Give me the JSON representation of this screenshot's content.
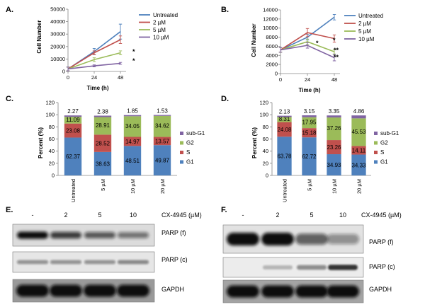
{
  "panels": {
    "A": "A.",
    "B": "B.",
    "C": "C.",
    "D": "D.",
    "E": "E.",
    "F": "F."
  },
  "chart_data": [
    {
      "id": "A",
      "type": "line",
      "title": "",
      "xlabel": "Time (h)",
      "ylabel": "Cell Number",
      "x": [
        0,
        24,
        48
      ],
      "xlim": [
        0,
        48
      ],
      "ylim": [
        0,
        50000
      ],
      "yticks": [
        0,
        10000,
        20000,
        30000,
        40000,
        50000
      ],
      "grid": false,
      "legend": "right",
      "series": [
        {
          "name": "Untreated",
          "color": "#4f81bd",
          "values": [
            2000,
            16000,
            32000
          ],
          "errors": [
            1500,
            2500,
            6000
          ]
        },
        {
          "name": "2 µM",
          "color": "#c0504d",
          "values": [
            2000,
            15000,
            25500
          ],
          "errors": [
            1500,
            1500,
            3000
          ]
        },
        {
          "name": "5 µM",
          "color": "#9bbb59",
          "values": [
            2000,
            9500,
            15000
          ],
          "errors": [
            1500,
            1500,
            1500
          ]
        },
        {
          "name": "10 µM",
          "color": "#8064a2",
          "values": [
            2000,
            4500,
            6500
          ],
          "errors": [
            1500,
            800,
            800
          ]
        }
      ],
      "annotations": [
        "*",
        "*"
      ]
    },
    {
      "id": "B",
      "type": "line",
      "title": "",
      "xlabel": "Time (h)",
      "ylabel": "Cell Number",
      "x": [
        0,
        24,
        48
      ],
      "xlim": [
        0,
        48
      ],
      "ylim": [
        0,
        14000
      ],
      "yticks": [
        0,
        2000,
        4000,
        6000,
        8000,
        10000,
        12000,
        14000
      ],
      "grid": false,
      "legend": "right",
      "series": [
        {
          "name": "Untreated",
          "color": "#4f81bd",
          "values": [
            5200,
            8000,
            12400
          ],
          "errors": [
            500,
            600,
            600
          ]
        },
        {
          "name": "2 µM",
          "color": "#c0504d",
          "values": [
            5200,
            9000,
            7700
          ],
          "errors": [
            500,
            900,
            800
          ]
        },
        {
          "name": "5 µM",
          "color": "#9bbb59",
          "values": [
            5200,
            7000,
            4800
          ],
          "errors": [
            500,
            600,
            500
          ]
        },
        {
          "name": "10 µM",
          "color": "#8064a2",
          "values": [
            5200,
            6200,
            3500
          ],
          "errors": [
            500,
            600,
            700
          ]
        }
      ],
      "annotations": [
        "*",
        "*",
        "**",
        "**"
      ]
    },
    {
      "id": "C",
      "type": "bar",
      "stacked": true,
      "title": "",
      "xlabel": "",
      "ylabel": "Percent (%)",
      "ylim": [
        0,
        120
      ],
      "yticks": [
        0,
        20,
        40,
        60,
        80,
        100,
        120
      ],
      "categories": [
        "Untreated",
        "5 µM",
        "10 µM",
        "20 µM"
      ],
      "legend": "right",
      "series": [
        {
          "name": "G1",
          "color": "#4f81bd",
          "values": [
            62.37,
            38.63,
            48.51,
            49.87
          ],
          "labels": [
            "62.37",
            "38.63",
            "48.51",
            "49.87"
          ]
        },
        {
          "name": "S",
          "color": "#c0504d",
          "values": [
            23.08,
            28.52,
            14.97,
            13.57
          ],
          "labels": [
            "23.08",
            "28.52",
            "14.97",
            "13.57"
          ]
        },
        {
          "name": "G2",
          "color": "#9bbb59",
          "values": [
            11.09,
            28.91,
            34.05,
            34.62
          ],
          "labels": [
            "11.09",
            "28.91",
            "34.05",
            "34.62"
          ]
        },
        {
          "name": "sub-G1",
          "color": "#8064a2",
          "values": [
            2.27,
            2.38,
            1.85,
            1.53
          ],
          "labels": [
            "2.27",
            "2.38",
            "1.85",
            "1.53"
          ]
        }
      ]
    },
    {
      "id": "D",
      "type": "bar",
      "stacked": true,
      "title": "",
      "xlabel": "",
      "ylabel": "Percent (%)",
      "ylim": [
        0,
        120
      ],
      "yticks": [
        0,
        20,
        40,
        60,
        80,
        100,
        120
      ],
      "categories": [
        "Untreated",
        "5 µM",
        "10 µM",
        "20 µM"
      ],
      "legend": "right",
      "series": [
        {
          "name": "G1",
          "color": "#4f81bd",
          "values": [
            63.78,
            62.72,
            34.93,
            34.33
          ],
          "labels": [
            "63.78",
            "62.72",
            "34.93",
            "34.33"
          ]
        },
        {
          "name": "S",
          "color": "#c0504d",
          "values": [
            24.08,
            15.18,
            23.26,
            14.11
          ],
          "labels": [
            "24.08",
            "15.18",
            "23.26",
            "14.11"
          ]
        },
        {
          "name": "G2",
          "color": "#9bbb59",
          "values": [
            8.31,
            17.95,
            37.26,
            45.53
          ],
          "labels": [
            "8.31",
            "17.95",
            "37.26",
            "45.53"
          ]
        },
        {
          "name": "sub-G1",
          "color": "#8064a2",
          "values": [
            2.13,
            3.15,
            3.35,
            4.86
          ],
          "labels": [
            "2.13",
            "3.15",
            "3.35",
            "4.86"
          ]
        }
      ]
    }
  ],
  "blots": [
    {
      "id": "E",
      "lanes": [
        "-",
        "2",
        "5",
        "10"
      ],
      "treatment_label": "CX-4945 (µM)",
      "rows": [
        {
          "label": "PARP (f)",
          "intensity": [
            1.0,
            0.75,
            0.6,
            0.45
          ]
        },
        {
          "label": "PARP (c)",
          "intensity": [
            0.3,
            0.3,
            0.3,
            0.35
          ]
        },
        {
          "label": "GAPDH",
          "intensity": [
            1.0,
            1.0,
            1.0,
            1.0
          ]
        }
      ]
    },
    {
      "id": "F",
      "lanes": [
        "-",
        "2",
        "5",
        "10"
      ],
      "treatment_label": "CX-4945 (µM)",
      "rows": [
        {
          "label": "PARP (f)",
          "intensity": [
            1.0,
            1.0,
            0.55,
            0.3
          ]
        },
        {
          "label": "PARP (c)",
          "intensity": [
            0.0,
            0.1,
            0.35,
            0.8
          ]
        },
        {
          "label": "GAPDH",
          "intensity": [
            1.0,
            1.0,
            1.0,
            1.0
          ]
        }
      ]
    }
  ]
}
